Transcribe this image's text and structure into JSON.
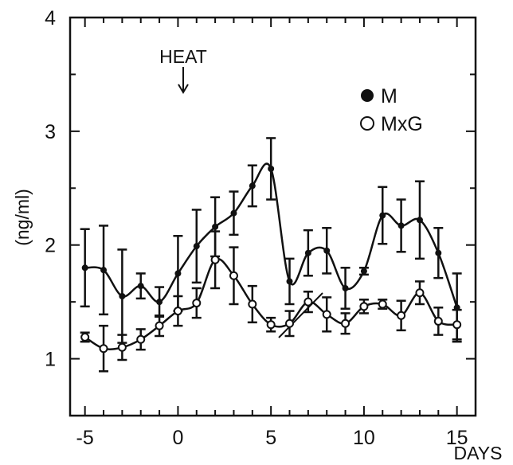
{
  "chart_data": {
    "type": "line",
    "title": "",
    "xlabel": "DAYS",
    "ylabel": "(ng/ml)",
    "xlim": [
      -5.8,
      16
    ],
    "ylim": [
      0.5,
      4.0
    ],
    "x_ticks": [
      -5,
      0,
      5,
      10,
      15
    ],
    "x_tick_labels": [
      "-5",
      "0",
      "5",
      "10",
      "15"
    ],
    "y_ticks": [
      1,
      2,
      3,
      4
    ],
    "y_tick_labels": [
      "1",
      "2",
      "3",
      "4"
    ],
    "grid": false,
    "legend_position": "top-right",
    "annotations": [
      {
        "text": "HEAT",
        "x": 0,
        "arrow": "down"
      }
    ],
    "series": [
      {
        "name": "M",
        "marker": "filled-circle",
        "x": [
          -5,
          -4,
          -3,
          -2,
          -1,
          0,
          1,
          2,
          3,
          4,
          5,
          6,
          7,
          8,
          9,
          10,
          11,
          12,
          13,
          14,
          15
        ],
        "y": [
          1.8,
          1.78,
          1.55,
          1.64,
          1.5,
          1.75,
          1.99,
          2.16,
          2.28,
          2.52,
          2.67,
          1.68,
          1.93,
          1.95,
          1.62,
          1.77,
          2.26,
          2.17,
          2.22,
          1.93,
          1.45
        ],
        "error": [
          0.34,
          0.39,
          0.41,
          0.11,
          0.13,
          0.33,
          0.32,
          0.26,
          0.19,
          0.18,
          0.27,
          0.2,
          0.2,
          0.2,
          0.18,
          0.03,
          0.25,
          0.23,
          0.34,
          0.22,
          0.3
        ]
      },
      {
        "name": "MxG",
        "marker": "open-circle",
        "x": [
          -5,
          -4,
          -3,
          -2,
          -1,
          0,
          1,
          2,
          3,
          4,
          5,
          6,
          7,
          8,
          9,
          10,
          11,
          12,
          13,
          14,
          15
        ],
        "y": [
          1.19,
          1.09,
          1.1,
          1.17,
          1.29,
          1.42,
          1.49,
          1.87,
          1.73,
          1.48,
          1.3,
          1.31,
          1.5,
          1.39,
          1.31,
          1.46,
          1.48,
          1.38,
          1.58,
          1.33,
          1.3
        ],
        "error": [
          0.04,
          0.2,
          0.11,
          0.09,
          0.09,
          0.13,
          0.13,
          0.25,
          0.25,
          0.16,
          0.06,
          0.11,
          0.09,
          0.15,
          0.09,
          0.06,
          0.04,
          0.13,
          0.1,
          0.12,
          0.13
        ]
      }
    ]
  }
}
